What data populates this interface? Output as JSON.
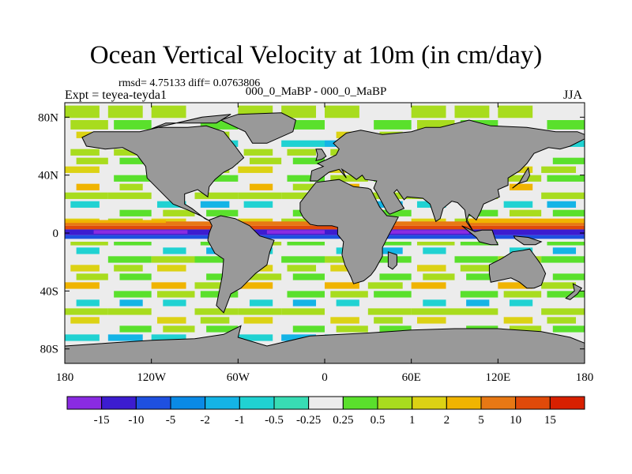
{
  "chart_data": {
    "type": "heatmap",
    "title": "Ocean Vertical Velocity at 10m (in cm/day)",
    "stats": "rmsd= 4.75133 diff= 0.0763806",
    "subtitle": "000_0_MaBP - 000_0_MaBP",
    "experiment": "Expt = teyea-teyda1",
    "season": "JJA",
    "x_range": [
      -180,
      180
    ],
    "y_range": [
      -90,
      90
    ],
    "x_ticks": [
      {
        "value": -180,
        "label": "180"
      },
      {
        "value": -120,
        "label": "120W"
      },
      {
        "value": -60,
        "label": "60W"
      },
      {
        "value": 0,
        "label": "0"
      },
      {
        "value": 60,
        "label": "60E"
      },
      {
        "value": 120,
        "label": "120E"
      },
      {
        "value": 180,
        "label": "180"
      }
    ],
    "y_ticks": [
      {
        "value": 80,
        "label": "80N"
      },
      {
        "value": 40,
        "label": "40N"
      },
      {
        "value": 0,
        "label": "0"
      },
      {
        "value": -40,
        "label": "40S"
      },
      {
        "value": -80,
        "label": "80S"
      }
    ],
    "levels": [
      "-15",
      "-10",
      "-5",
      "-2",
      "-1",
      "-0.5",
      "-0.25",
      "0.25",
      "0.5",
      "1",
      "2",
      "5",
      "10",
      "15"
    ],
    "colors": [
      "#8a2be2",
      "#3c1cd0",
      "#1e50e0",
      "#0a8ae6",
      "#14b4e6",
      "#20d2d2",
      "#38dcb4",
      "#ececec",
      "#5ae02c",
      "#a8dc1e",
      "#dcd214",
      "#f0b400",
      "#e87814",
      "#e04a0a",
      "#d82000"
    ],
    "land_color": "#999999",
    "land_outline_color": "#000000"
  }
}
